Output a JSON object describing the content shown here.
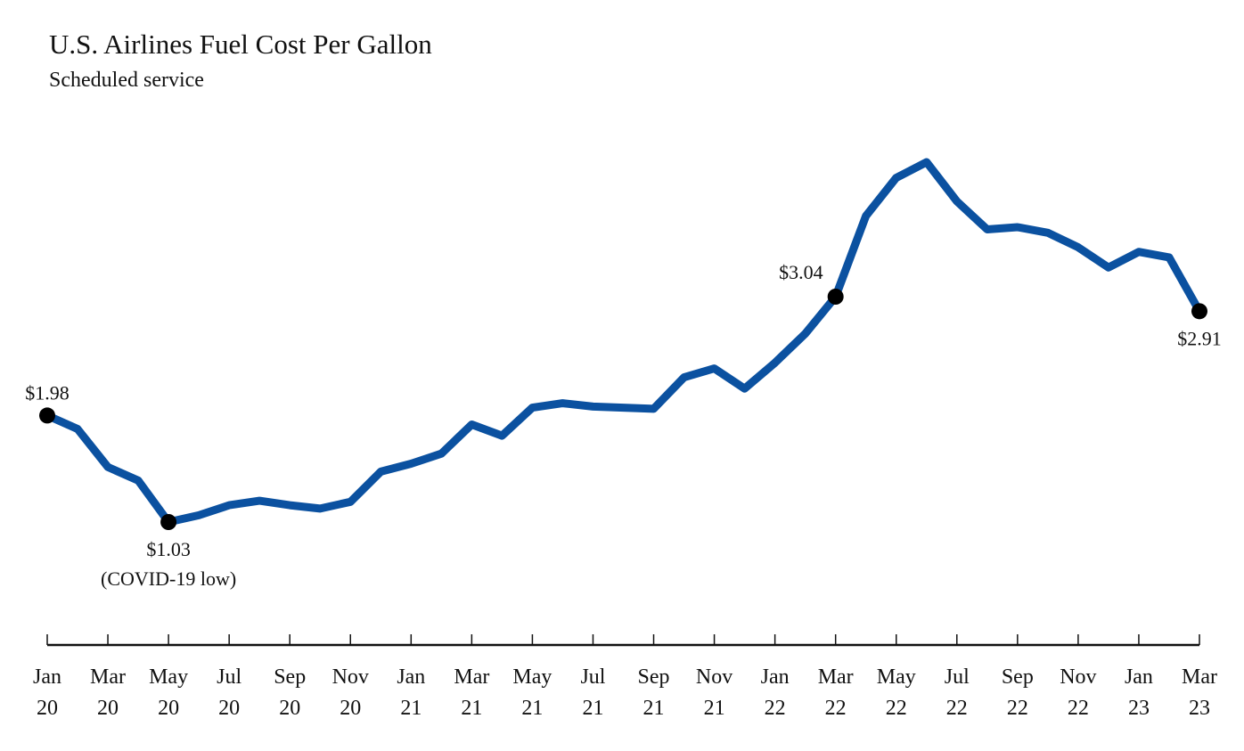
{
  "chart_data": {
    "type": "line",
    "title": "U.S. Airlines Fuel Cost Per Gallon",
    "subtitle": "Scheduled service",
    "xlabel": "",
    "ylabel": "",
    "grid": false,
    "legend": "none",
    "line_color": "#0b51a0",
    "marker_color": "#000000",
    "x": [
      "Jan 20",
      "Feb 20",
      "Mar 20",
      "Apr 20",
      "May 20",
      "Jun 20",
      "Jul 20",
      "Aug 20",
      "Sep 20",
      "Oct 20",
      "Nov 20",
      "Dec 20",
      "Jan 21",
      "Feb 21",
      "Mar 21",
      "Apr 21",
      "May 21",
      "Jun 21",
      "Jul 21",
      "Aug 21",
      "Sep 21",
      "Oct 21",
      "Nov 21",
      "Dec 21",
      "Jan 22",
      "Feb 22",
      "Mar 22",
      "Apr 22",
      "May 22",
      "Jun 22",
      "Jul 22",
      "Aug 22",
      "Sep 22",
      "Oct 22",
      "Nov 22",
      "Dec 22",
      "Jan 23",
      "Feb 23",
      "Mar 23"
    ],
    "series": [
      {
        "name": "Fuel cost per gallon ($)",
        "values": [
          1.98,
          1.86,
          1.52,
          1.4,
          1.03,
          1.09,
          1.18,
          1.22,
          1.18,
          1.15,
          1.21,
          1.48,
          1.55,
          1.64,
          1.9,
          1.8,
          2.05,
          2.09,
          2.06,
          2.05,
          2.04,
          2.32,
          2.4,
          2.22,
          2.45,
          2.71,
          3.04,
          3.76,
          4.1,
          4.24,
          3.89,
          3.64,
          3.66,
          3.61,
          3.48,
          3.3,
          3.44,
          3.39,
          2.91
        ]
      }
    ],
    "ylim": [
      0.6,
      4.5
    ],
    "x_ticks": [
      {
        "month": "Jan",
        "year": "20",
        "index": 0
      },
      {
        "month": "Mar",
        "year": "20",
        "index": 2
      },
      {
        "month": "May",
        "year": "20",
        "index": 4
      },
      {
        "month": "Jul",
        "year": "20",
        "index": 6
      },
      {
        "month": "Sep",
        "year": "20",
        "index": 8
      },
      {
        "month": "Nov",
        "year": "20",
        "index": 10
      },
      {
        "month": "Jan",
        "year": "21",
        "index": 12
      },
      {
        "month": "Mar",
        "year": "21",
        "index": 14
      },
      {
        "month": "May",
        "year": "21",
        "index": 16
      },
      {
        "month": "Jul",
        "year": "21",
        "index": 18
      },
      {
        "month": "Sep",
        "year": "21",
        "index": 20
      },
      {
        "month": "Nov",
        "year": "21",
        "index": 22
      },
      {
        "month": "Jan",
        "year": "22",
        "index": 24
      },
      {
        "month": "Mar",
        "year": "22",
        "index": 26
      },
      {
        "month": "May",
        "year": "22",
        "index": 28
      },
      {
        "month": "Jul",
        "year": "22",
        "index": 30
      },
      {
        "month": "Sep",
        "year": "22",
        "index": 32
      },
      {
        "month": "Nov",
        "year": "22",
        "index": 34
      },
      {
        "month": "Jan",
        "year": "23",
        "index": 36
      },
      {
        "month": "Mar",
        "year": "23",
        "index": 38
      }
    ],
    "annotations": [
      {
        "index": 0,
        "lines": [
          "$1.98"
        ],
        "position": "above"
      },
      {
        "index": 4,
        "lines": [
          "$1.03",
          "(COVID-19 low)"
        ],
        "position": "below"
      },
      {
        "index": 26,
        "lines": [
          "$3.04"
        ],
        "position": "above-left"
      },
      {
        "index": 38,
        "lines": [
          "$2.91"
        ],
        "position": "below"
      }
    ]
  }
}
